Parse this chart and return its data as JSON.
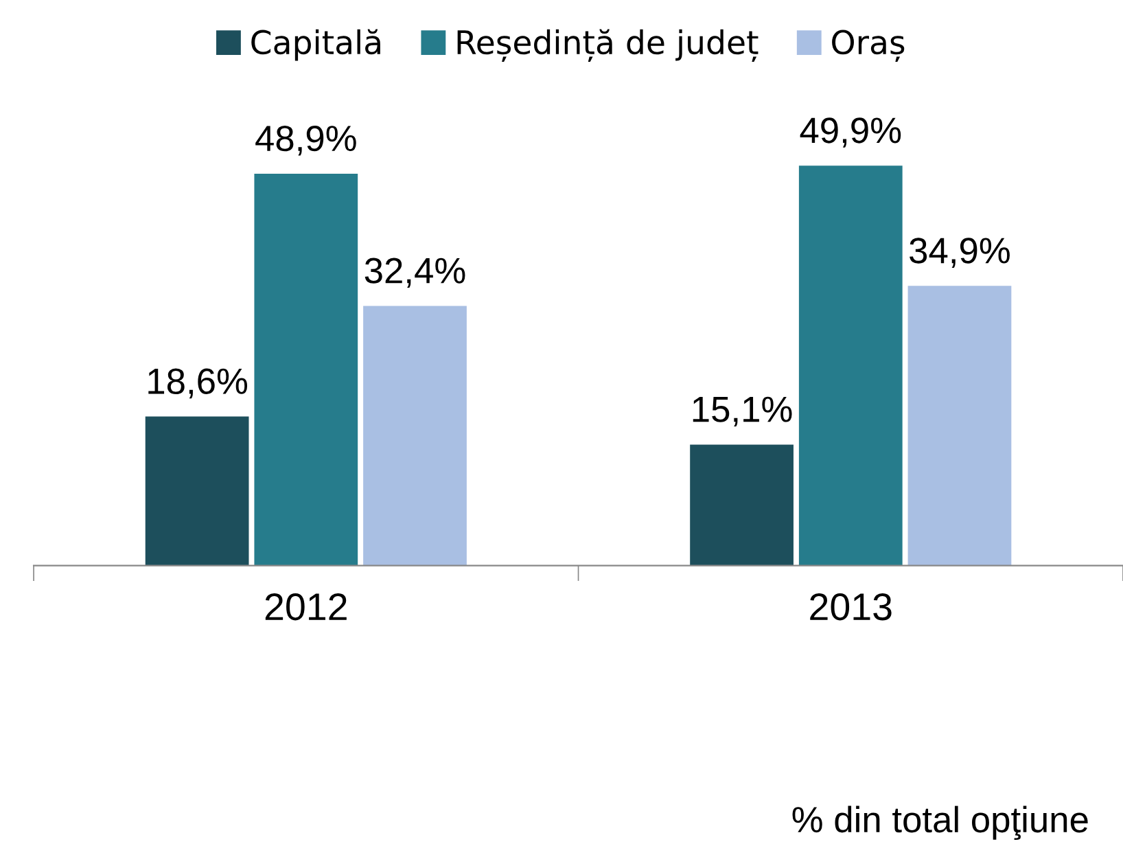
{
  "chart_data": {
    "type": "bar",
    "categories": [
      "2012",
      "2013"
    ],
    "series": [
      {
        "name": "Capitală",
        "color": "#1d4f5c",
        "values": [
          18.6,
          15.1
        ],
        "value_labels": [
          "18,6%",
          "15,1%"
        ]
      },
      {
        "name": "Reședință de județ",
        "color": "#267c8c",
        "values": [
          48.9,
          49.9
        ],
        "value_labels": [
          "48,9%",
          "49,9%"
        ]
      },
      {
        "name": "Oraș",
        "color": "#a9bfe3",
        "values": [
          32.4,
          34.9
        ],
        "value_labels": [
          "32,4%",
          "34,9%"
        ]
      }
    ],
    "annotations": [
      "% din total opţiune"
    ],
    "legend": "top",
    "tick_labels": "x",
    "grid": false
  }
}
